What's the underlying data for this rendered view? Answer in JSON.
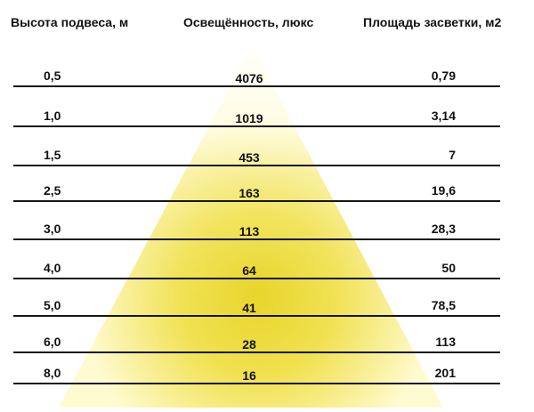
{
  "headers": {
    "height": "Высота подвеса, м",
    "lux": "Освещённость, люкс",
    "area": "Площадь засветки, м2"
  },
  "colors": {
    "cone_bright": "#f4e430",
    "cone_edge": "#ffffd6",
    "line": "#151515",
    "text": "#111111"
  },
  "rows": [
    {
      "height": "0,5",
      "lux": "4076",
      "area": "0,79"
    },
    {
      "height": "1,0",
      "lux": "1019",
      "area": "3,14"
    },
    {
      "height": "1,5",
      "lux": "453",
      "area": "7"
    },
    {
      "height": "2,5",
      "lux": "163",
      "area": "19,6"
    },
    {
      "height": "3,0",
      "lux": "113",
      "area": "28,3"
    },
    {
      "height": "4,0",
      "lux": "64",
      "area": "50"
    },
    {
      "height": "5,0",
      "lux": "41",
      "area": "78,5"
    },
    {
      "height": "6,0",
      "lux": "28",
      "area": "113"
    },
    {
      "height": "8,0",
      "lux": "16",
      "area": "201"
    }
  ]
}
